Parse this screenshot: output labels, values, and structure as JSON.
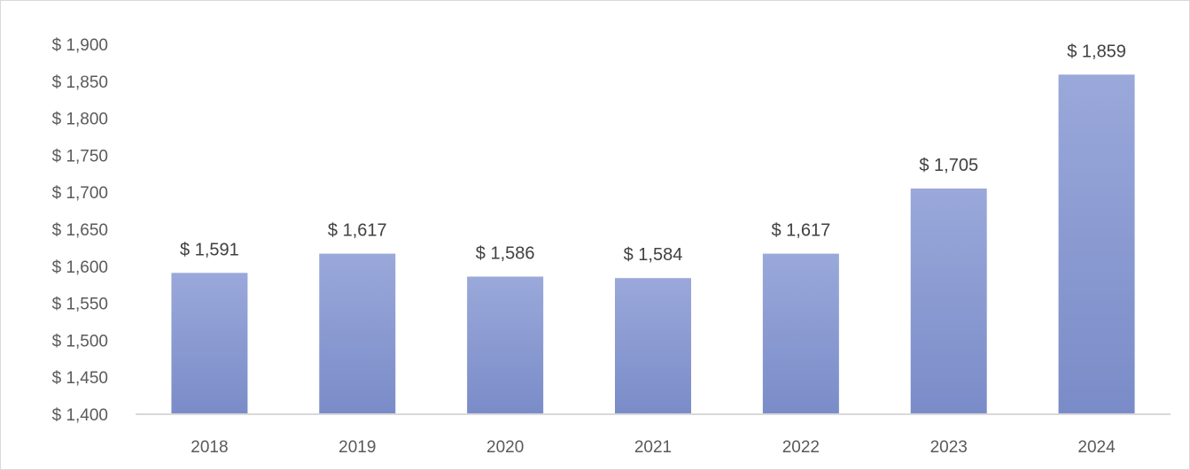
{
  "chart_data": {
    "type": "bar",
    "categories": [
      "2018",
      "2019",
      "2020",
      "2021",
      "2022",
      "2023",
      "2024"
    ],
    "values": [
      1591,
      1617,
      1586,
      1584,
      1617,
      1705,
      1859
    ],
    "data_labels": [
      "$ 1,591",
      "$ 1,617",
      "$ 1,586",
      "$ 1,584",
      "$ 1,617",
      "$ 1,705",
      "$ 1,859"
    ],
    "y_ticks": [
      1400,
      1450,
      1500,
      1550,
      1600,
      1650,
      1700,
      1750,
      1800,
      1850,
      1900
    ],
    "y_tick_labels": [
      "$ 1,400",
      "$ 1,450",
      "$ 1,500",
      "$ 1,550",
      "$ 1,600",
      "$ 1,650",
      "$ 1,700",
      "$ 1,750",
      "$ 1,800",
      "$ 1,850",
      "$ 1,900"
    ],
    "ylim": [
      1400,
      1900
    ],
    "title": "",
    "xlabel": "",
    "ylabel": "",
    "grid": false,
    "legend": "none",
    "bar_color_top": "#9aa8da",
    "bar_color_bottom": "#7a8cc8",
    "axis_color": "#d9d9d9"
  }
}
